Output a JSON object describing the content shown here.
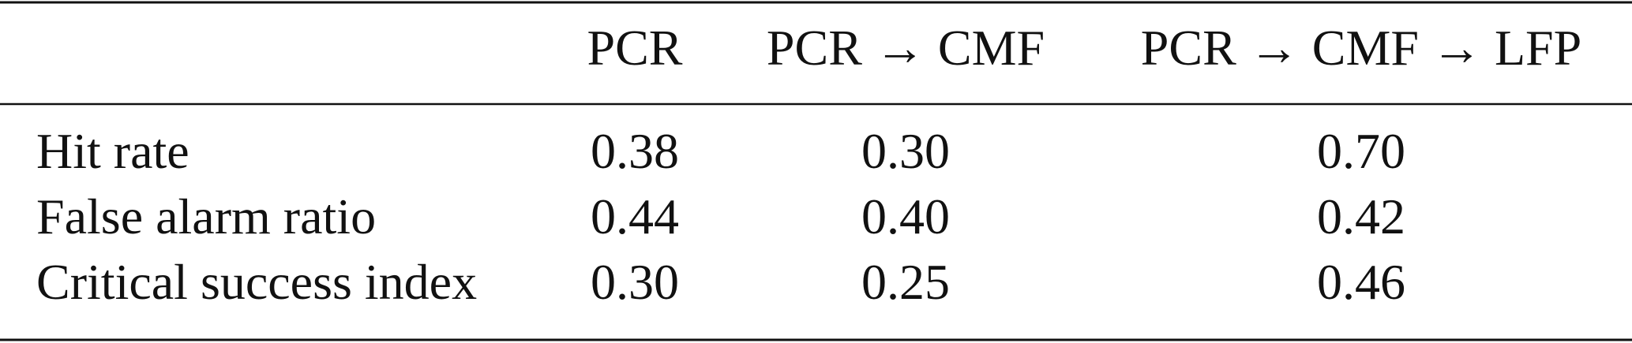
{
  "table": {
    "columns": [
      "PCR",
      "PCR → CMF",
      "PCR → CMF → LFP"
    ],
    "rows": [
      [
        "Hit rate",
        "0.38",
        "0.30",
        "0.70"
      ],
      [
        "False alarm ratio",
        "0.44",
        "0.40",
        "0.42"
      ],
      [
        "Critical success index",
        "0.30",
        "0.25",
        "0.46"
      ]
    ]
  }
}
